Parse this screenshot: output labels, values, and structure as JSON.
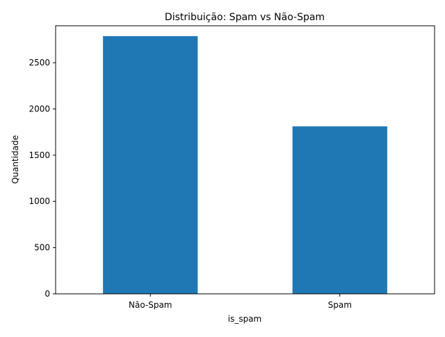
{
  "chart_data": {
    "type": "bar",
    "title": "Distribuição: Spam vs Não-Spam",
    "xlabel": "is_spam",
    "ylabel": "Quantidade",
    "categories": [
      "Não-Spam",
      "Spam"
    ],
    "values": [
      2788,
      1812
    ],
    "ylim": [
      0,
      2900
    ],
    "yticks": [
      0,
      500,
      1000,
      1500,
      2000,
      2500
    ],
    "ytick_labels": [
      "0",
      "500",
      "1000",
      "1500",
      "2000",
      "2500"
    ],
    "bar_color": "#1f77b4",
    "grid": false,
    "legend": false
  }
}
